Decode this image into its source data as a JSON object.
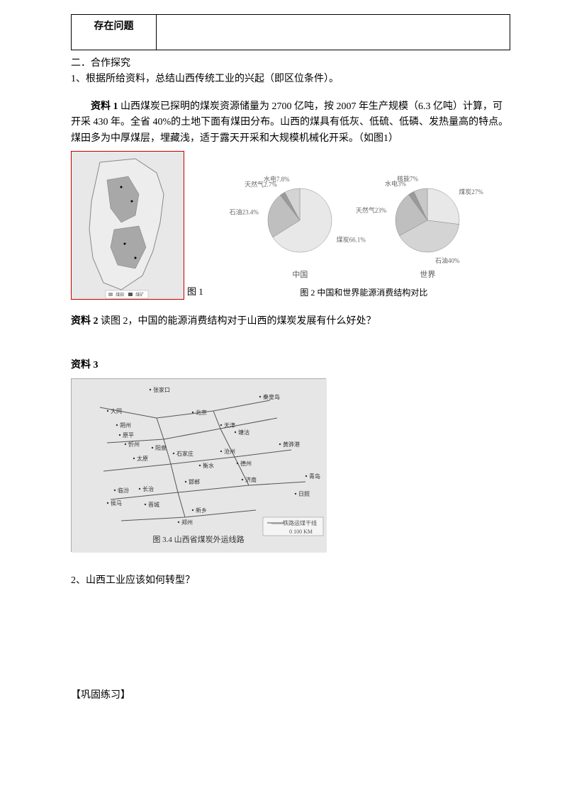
{
  "table": {
    "label": "存在问题"
  },
  "section2": {
    "heading": "二．合作探究",
    "q1": "1、根据所给资料，总结山西传统工业的兴起（即区位条件）。"
  },
  "material1": {
    "label": "资料 1",
    "text": " 山西煤炭已探明的煤炭资源储量为 2700 亿吨，按 2007 年生产规模（6.3 亿吨）计算，可开采 430 年。全省 40%的土地下面有煤田分布。山西的煤具有低灰、低硫、低磷、发热量高的特点。煤田多为中厚煤层，埋藏浅，适于露天开采和大规模机械化开采。（如图1）",
    "fig1_caption": "图 1"
  },
  "fig2": {
    "caption": "图 2 中国和世界能源消费结构对比",
    "china": {
      "label": "中国",
      "slices": [
        {
          "name": "煤炭66.1%",
          "value": 66.1,
          "color": "#e8e8e8"
        },
        {
          "name": "石油23.4%",
          "value": 23.4,
          "color": "#bfbfbf"
        },
        {
          "name": "天然气2.7%",
          "value": 2.7,
          "color": "#9a9a9a"
        },
        {
          "name": "水电7.8%",
          "value": 7.8,
          "color": "#d4d4d4"
        }
      ]
    },
    "world": {
      "label": "世界",
      "slices": [
        {
          "name": "煤炭27%",
          "value": 27,
          "color": "#e8e8e8"
        },
        {
          "name": "石油40%",
          "value": 40,
          "color": "#d4d4d4"
        },
        {
          "name": "天然气23%",
          "value": 23,
          "color": "#bfbfbf"
        },
        {
          "name": "水电3%",
          "value": 3,
          "color": "#9a9a9a"
        },
        {
          "name": "核能7%",
          "value": 7,
          "color": "#c8c8c8"
        }
      ]
    },
    "label_fontsize": 9,
    "label_color": "#666666"
  },
  "material2": {
    "label": "资料 2",
    "text": " 读图 2，中国的能源消费结构对于山西的煤炭发展有什么好处？"
  },
  "material3": {
    "label": "资料 3",
    "map_caption": "图 3.4 山西省煤炭外运线路",
    "legend": "——铁路运煤干线",
    "scale": "0   100 KM",
    "cities": [
      "张家口",
      "秦皇岛",
      "北京",
      "天津",
      "塘沽",
      "大同",
      "朔州",
      "忻州",
      "原平",
      "太原",
      "石家庄",
      "阳泉",
      "沧州",
      "黄骅港",
      "德州",
      "衡水",
      "长治",
      "晋城",
      "邯郸",
      "济南",
      "临汾",
      "新乡",
      "郑州",
      "日照",
      "青岛",
      "侯马"
    ]
  },
  "q2": "2、山西工业应该如何转型？",
  "practice": "【巩固练习】",
  "map_svg": {
    "outline_color": "#888888",
    "fill_light": "#e0e0e0",
    "fill_dark": "#a0a0a0"
  }
}
